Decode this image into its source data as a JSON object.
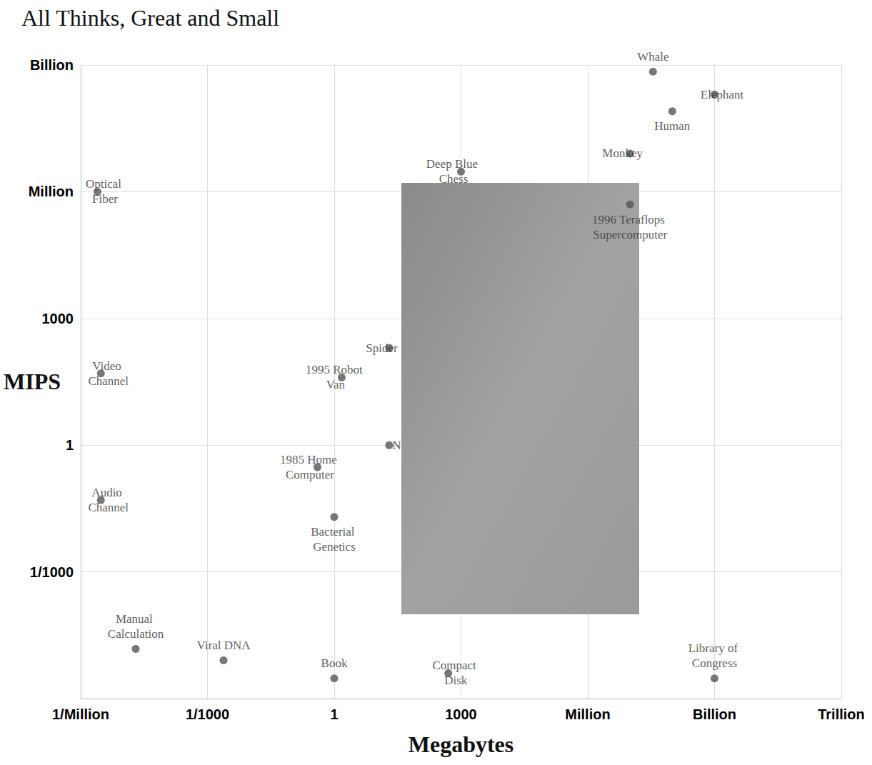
{
  "chart_data": {
    "type": "scatter",
    "title": "All Thinks, Great and Small",
    "x_label": "Megabytes",
    "y_label": "MIPS",
    "log": true,
    "grid": true,
    "marker": "circle",
    "color": "#555555",
    "xlim": [
      1e-06,
      1000000000000
    ],
    "xticks": [
      {
        "value": 1e-06,
        "label": "1/Million"
      },
      {
        "value": 0.001,
        "label": "1/1000"
      },
      1,
      1000,
      {
        "value": 1000000,
        "label": "Million"
      },
      {
        "value": 1000000000,
        "label": "Billion"
      },
      {
        "value": 1000000000000,
        "label": "Trillion"
      }
    ],
    "ylim": [
      1e-06,
      1000000000
    ],
    "yticks": [
      {
        "value": 0.001,
        "label": "1/1000"
      },
      1,
      1000,
      {
        "value": 1000000,
        "label": "Million"
      },
      {
        "value": 1000000000,
        "label": "Billion"
      }
    ],
    "labels": [
      "Optical Fiber",
      "Video Channel",
      "Audio Channel",
      "Manual Calculation",
      "Viral DNA",
      "Book",
      "Compact Disk",
      "Library of Congress",
      "Bacterial Genetics",
      "1985 Home Computer",
      "1995 Robot Van",
      "Spider",
      "N",
      "Deep Blue Chess",
      "1996 Teraflops Supercomputer",
      "Monkey",
      "Human",
      "Elephant",
      "Whale"
    ],
    "x": [
      2.5e-06,
      3e-06,
      3e-06,
      2e-05,
      0.0024,
      1,
      500,
      1000000000,
      1,
      0.4,
      1.5,
      20,
      20,
      1000,
      10000000,
      10000000,
      100000000,
      1000000000,
      35000000
    ],
    "values": [
      1000000,
      50,
      0.05,
      1.5e-05,
      8e-06,
      3e-06,
      4e-06,
      3e-06,
      0.02,
      0.3,
      40,
      200,
      1,
      3000000,
      500000,
      8000000,
      80000000,
      200000000,
      700000000
    ]
  }
}
